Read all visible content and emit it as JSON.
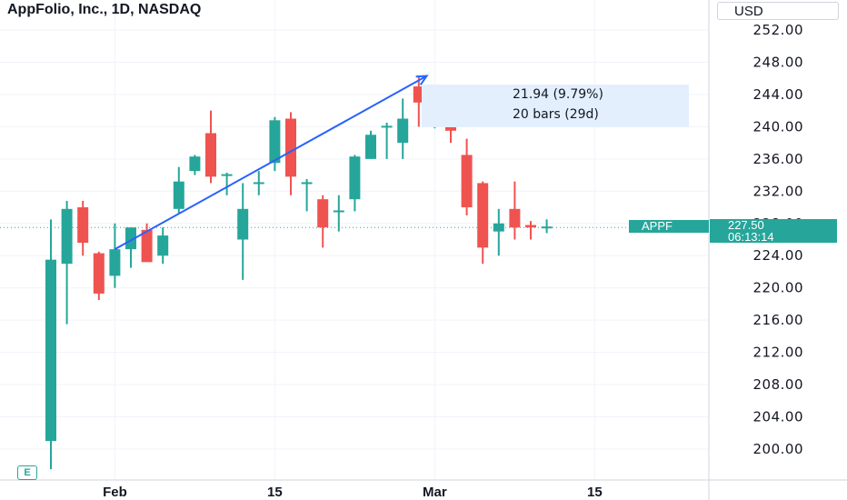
{
  "header": {
    "title": "AppFolio, Inc., 1D, NASDAQ",
    "currency": "USD"
  },
  "measure_tooltip": {
    "line1": "21.94 (9.79%)",
    "line2": "20 bars (29d)"
  },
  "last_price": {
    "symbol": "APPF",
    "price": "227.50",
    "countdown": "06:13:14",
    "value": 227.5
  },
  "earnings_marker": "E",
  "colors": {
    "up": "#26a69a",
    "down": "#ef5350",
    "drawing": "#2962ff",
    "grid": "#f0f3fa",
    "axis_text": "#131722"
  },
  "chart_data": {
    "type": "candlestick",
    "title": "AppFolio, Inc., 1D, NASDAQ",
    "y_axis": {
      "range": [
        196.5,
        253.5
      ],
      "ticks": [
        200,
        204,
        208,
        212,
        216,
        220,
        224,
        228,
        232,
        236,
        240,
        244,
        248,
        252
      ],
      "tick_labels": [
        "200.00",
        "204.00",
        "208.00",
        "212.00",
        "216.00",
        "220.00",
        "224.00",
        "228.00",
        "232.00",
        "236.00",
        "240.00",
        "244.00",
        "248.00",
        "252.00"
      ]
    },
    "x_axis": {
      "tick_labels": [
        "Feb",
        "15",
        "Mar",
        "15"
      ],
      "tick_index": [
        4,
        14,
        24,
        34
      ]
    },
    "candles": [
      {
        "o": 201.0,
        "h": 228.5,
        "l": 197.5,
        "c": 223.5
      },
      {
        "o": 223.0,
        "h": 230.8,
        "l": 215.5,
        "c": 229.8
      },
      {
        "o": 230.0,
        "h": 230.8,
        "l": 224.0,
        "c": 225.6
      },
      {
        "o": 224.3,
        "h": 224.5,
        "l": 218.5,
        "c": 219.3
      },
      {
        "o": 221.5,
        "h": 228.0,
        "l": 220.0,
        "c": 224.8
      },
      {
        "o": 224.8,
        "h": 227.5,
        "l": 222.5,
        "c": 227.5
      },
      {
        "o": 227.2,
        "h": 228.0,
        "l": 223.5,
        "c": 223.2
      },
      {
        "o": 224.0,
        "h": 227.5,
        "l": 223.0,
        "c": 226.5
      },
      {
        "o": 229.8,
        "h": 235.0,
        "l": 229.3,
        "c": 233.2
      },
      {
        "o": 234.5,
        "h": 236.5,
        "l": 234.0,
        "c": 236.3
      },
      {
        "o": 239.2,
        "h": 242.0,
        "l": 233.0,
        "c": 233.8
      },
      {
        "o": 234.0,
        "h": 234.3,
        "l": 231.5,
        "c": 234.0
      },
      {
        "o": 226.0,
        "h": 233.0,
        "l": 221.0,
        "c": 229.8
      },
      {
        "o": 233.0,
        "h": 234.5,
        "l": 231.5,
        "c": 233.0
      },
      {
        "o": 235.5,
        "h": 241.2,
        "l": 234.5,
        "c": 240.8
      },
      {
        "o": 241.0,
        "h": 241.8,
        "l": 231.5,
        "c": 233.8
      },
      {
        "o": 233.0,
        "h": 233.5,
        "l": 229.5,
        "c": 233.0
      },
      {
        "o": 231.0,
        "h": 231.5,
        "l": 225.0,
        "c": 227.5
      },
      {
        "o": 229.5,
        "h": 231.5,
        "l": 227.0,
        "c": 229.5
      },
      {
        "o": 231.0,
        "h": 236.5,
        "l": 229.5,
        "c": 236.3
      },
      {
        "o": 236.0,
        "h": 239.5,
        "l": 236.0,
        "c": 239.0
      },
      {
        "o": 240.0,
        "h": 240.5,
        "l": 236.0,
        "c": 240.0
      },
      {
        "o": 238.0,
        "h": 243.5,
        "l": 236.0,
        "c": 241.0
      },
      {
        "o": 245.0,
        "h": 246.3,
        "l": 240.0,
        "c": 243.0
      },
      {
        "o": 243.0,
        "h": 245.0,
        "l": 239.8,
        "c": 243.0
      },
      {
        "o": 241.5,
        "h": 242.0,
        "l": 238.0,
        "c": 239.5
      },
      {
        "o": 236.5,
        "h": 238.5,
        "l": 229.0,
        "c": 230.0
      },
      {
        "o": 233.0,
        "h": 233.2,
        "l": 223.0,
        "c": 225.0
      },
      {
        "o": 227.0,
        "h": 229.8,
        "l": 224.0,
        "c": 228.0
      },
      {
        "o": 229.8,
        "h": 233.2,
        "l": 226.0,
        "c": 227.5
      },
      {
        "o": 227.8,
        "h": 228.3,
        "l": 226.0,
        "c": 227.5
      },
      {
        "o": 227.5,
        "h": 228.5,
        "l": 226.8,
        "c": 227.5
      }
    ],
    "annotation": {
      "type": "arrow",
      "start": {
        "index": 4,
        "price": 224.8
      },
      "end": {
        "index": 23.5,
        "price": 246.3
      },
      "label": "21.94 (9.79%) / 20 bars (29d)"
    }
  }
}
